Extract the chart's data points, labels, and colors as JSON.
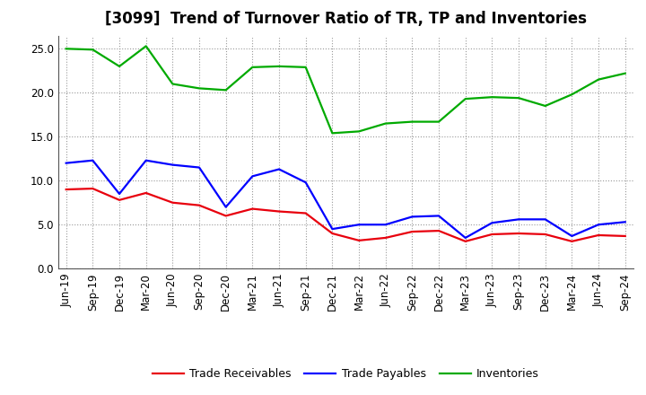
{
  "title": "[3099]  Trend of Turnover Ratio of TR, TP and Inventories",
  "xlabels": [
    "Jun-19",
    "Sep-19",
    "Dec-19",
    "Mar-20",
    "Jun-20",
    "Sep-20",
    "Dec-20",
    "Mar-21",
    "Jun-21",
    "Sep-21",
    "Dec-21",
    "Mar-22",
    "Jun-22",
    "Sep-22",
    "Dec-22",
    "Mar-23",
    "Jun-23",
    "Sep-23",
    "Dec-23",
    "Mar-24",
    "Jun-24",
    "Sep-24"
  ],
  "trade_receivables": [
    9.0,
    9.1,
    7.8,
    8.6,
    7.5,
    7.2,
    6.0,
    6.8,
    6.5,
    6.3,
    4.0,
    3.2,
    3.5,
    4.2,
    4.3,
    3.1,
    3.9,
    4.0,
    3.9,
    3.1,
    3.8,
    3.7
  ],
  "trade_payables": [
    12.0,
    12.3,
    8.5,
    12.3,
    11.8,
    11.5,
    7.0,
    10.5,
    11.3,
    9.8,
    4.5,
    5.0,
    5.0,
    5.9,
    6.0,
    3.5,
    5.2,
    5.6,
    5.6,
    3.7,
    5.0,
    5.3
  ],
  "inventories": [
    25.0,
    24.9,
    23.0,
    25.3,
    21.0,
    20.5,
    20.3,
    22.9,
    23.0,
    22.9,
    15.4,
    15.6,
    16.5,
    16.7,
    16.7,
    19.3,
    19.5,
    19.4,
    18.5,
    19.8,
    21.5,
    22.2
  ],
  "tr_color": "#e8000d",
  "tp_color": "#0000ff",
  "inv_color": "#00aa00",
  "ylim": [
    0,
    26.5
  ],
  "yticks": [
    0.0,
    5.0,
    10.0,
    15.0,
    20.0,
    25.0
  ],
  "legend_labels": [
    "Trade Receivables",
    "Trade Payables",
    "Inventories"
  ],
  "bg_color": "#ffffff",
  "plot_bg_color": "#ffffff",
  "grid_color": "#999999",
  "line_width": 1.6,
  "title_fontsize": 12,
  "tick_fontsize": 8.5,
  "legend_fontsize": 9
}
